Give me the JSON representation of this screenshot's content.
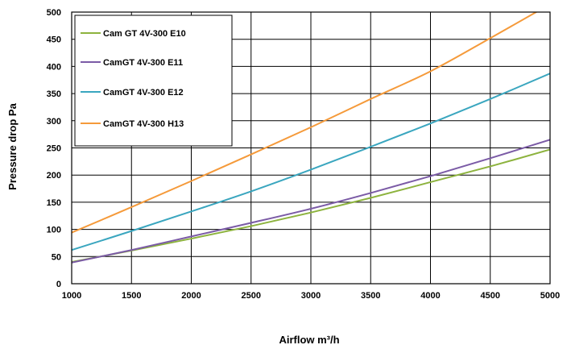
{
  "chart_data": {
    "type": "line",
    "xlabel": "Airflow m³/h",
    "ylabel": "Pressure drop Pa",
    "xlim": [
      1000,
      5000
    ],
    "ylim": [
      0,
      500
    ],
    "xticks": [
      1000,
      1500,
      2000,
      2500,
      3000,
      3500,
      4000,
      4500,
      5000
    ],
    "yticks": [
      0,
      50,
      100,
      150,
      200,
      250,
      300,
      350,
      400,
      450,
      500
    ],
    "grid": true,
    "legend_position": "top-left",
    "series": [
      {
        "name": "Cam GT 4V-300 E10",
        "color": "#8db33e",
        "points": [
          [
            1000,
            40
          ],
          [
            1500,
            61
          ],
          [
            2000,
            83
          ],
          [
            2500,
            106
          ],
          [
            3000,
            131
          ],
          [
            3500,
            158
          ],
          [
            4000,
            187
          ],
          [
            4500,
            216
          ],
          [
            5000,
            247
          ]
        ]
      },
      {
        "name": "CamGT 4V-300 E11",
        "color": "#7b5ba6",
        "points": [
          [
            1000,
            39
          ],
          [
            1500,
            62
          ],
          [
            2000,
            87
          ],
          [
            2500,
            112
          ],
          [
            3000,
            138
          ],
          [
            3500,
            167
          ],
          [
            4000,
            198
          ],
          [
            4500,
            231
          ],
          [
            5000,
            265
          ]
        ]
      },
      {
        "name": "CamGT 4V-300 E12",
        "color": "#3aa6bf",
        "points": [
          [
            1000,
            62
          ],
          [
            1500,
            97
          ],
          [
            2000,
            133
          ],
          [
            2500,
            170
          ],
          [
            3000,
            210
          ],
          [
            3500,
            252
          ],
          [
            4000,
            295
          ],
          [
            4500,
            340
          ],
          [
            5000,
            387
          ]
        ]
      },
      {
        "name": "CamGT 4V-300 H13",
        "color": "#f59a3a",
        "points": [
          [
            1000,
            94
          ],
          [
            1500,
            141
          ],
          [
            2000,
            189
          ],
          [
            2500,
            238
          ],
          [
            3000,
            288
          ],
          [
            3500,
            340
          ],
          [
            4000,
            391
          ],
          [
            4500,
            452
          ],
          [
            4900,
            502
          ]
        ]
      }
    ]
  }
}
